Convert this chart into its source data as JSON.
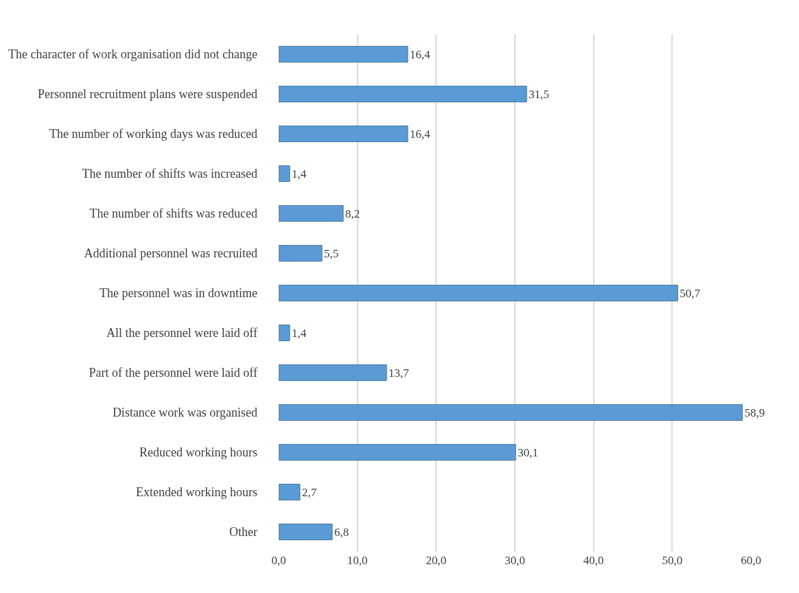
{
  "chart_data": {
    "type": "bar",
    "orientation": "horizontal",
    "categories": [
      "The character of work organisation did not change",
      "Personnel recruitment plans were suspended",
      "The number of working days was reduced",
      "The number of shifts was increased",
      "The number of shifts was reduced",
      "Additional personnel was recruited",
      "The personnel was in downtime",
      "All the personnel were laid off",
      "Part of the personnel were laid off",
      "Distance work was organised",
      "Reduced working hours",
      "Extended working hours",
      "Other"
    ],
    "values": [
      16.4,
      31.5,
      16.4,
      1.4,
      8.2,
      5.5,
      50.7,
      1.4,
      13.7,
      58.9,
      30.1,
      2.7,
      6.8
    ],
    "value_labels": [
      "16,4",
      "31,5",
      "16,4",
      "1,4",
      "8,2",
      "5,5",
      "50,7",
      "1,4",
      "13,7",
      "58,9",
      "30,1",
      "2,7",
      "6,8"
    ],
    "color": "#5b9bd5",
    "xlim": [
      0,
      60
    ],
    "xticks": [
      {
        "value": 0,
        "label": "0,0"
      },
      {
        "value": 10,
        "label": "10,0"
      },
      {
        "value": 20,
        "label": "20,0"
      },
      {
        "value": 30,
        "label": "30,0"
      },
      {
        "value": 40,
        "label": "40,0"
      },
      {
        "value": 50,
        "label": "50,0"
      },
      {
        "value": 60,
        "label": "60,0"
      }
    ],
    "grid": "x"
  }
}
